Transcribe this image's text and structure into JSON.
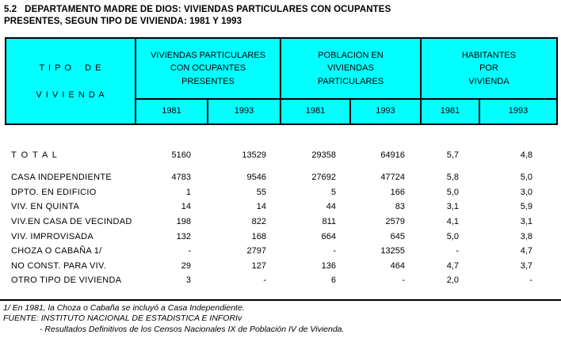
{
  "title": {
    "line1": "5.2   DEPARTAMENTO MADRE DE DIOS: VIVIENDAS PARTICULARES CON OCUPANTES",
    "line2": "PRESENTES, SEGUN TIPO DE VIVIENDA: 1981 Y 1993"
  },
  "colors": {
    "header_bg": "#00FFFF",
    "border": "#000000",
    "text": "#000000"
  },
  "table": {
    "row_header": {
      "line1": "T I P O    D E",
      "line2": "V I V I E N D A"
    },
    "groups": [
      {
        "title_lines": [
          "VIVIENDAS PARTICULARES",
          "CON OCUPANTES",
          "PRESENTES"
        ],
        "years": [
          "1981",
          "1993"
        ]
      },
      {
        "title_lines": [
          "POBLACION EN",
          "VIVIENDAS",
          "PARTICULARES"
        ],
        "years": [
          "1981",
          "1993"
        ]
      },
      {
        "title_lines": [
          "HABITANTES",
          "POR",
          "VIVIENDA"
        ],
        "years": [
          "1981",
          "1993"
        ]
      }
    ],
    "rows": [
      {
        "label": "T O T A L",
        "total": true,
        "values": [
          "5160",
          "13529",
          "29358",
          "64916",
          "5,7",
          "4,8"
        ]
      },
      {
        "label": "CASA INDEPENDIENTE",
        "total": false,
        "values": [
          "4783",
          "9546",
          "27692",
          "47724",
          "5,8",
          "5,0"
        ]
      },
      {
        "label": "DPTO. EN EDIFICIO",
        "total": false,
        "values": [
          "1",
          "55",
          "5",
          "166",
          "5,0",
          "3,0"
        ]
      },
      {
        "label": "VIV. EN QUINTA",
        "total": false,
        "values": [
          "14",
          "14",
          "44",
          "83",
          "3,1",
          "5,9"
        ]
      },
      {
        "label": "VIV.EN CASA DE VECINDAD",
        "total": false,
        "values": [
          "198",
          "822",
          "811",
          "2579",
          "4,1",
          "3,1"
        ]
      },
      {
        "label": "VIV. IMPROVISADA",
        "total": false,
        "values": [
          "132",
          "168",
          "664",
          "645",
          "5,0",
          "3,8"
        ]
      },
      {
        "label": "CHOZA O CABAÑA 1/",
        "total": false,
        "values": [
          "-",
          "2797",
          "-",
          "13255",
          "-",
          "4,7"
        ]
      },
      {
        "label": "NO CONST. PARA VIV.",
        "total": false,
        "values": [
          "29",
          "127",
          "136",
          "464",
          "4,7",
          "3,7"
        ]
      },
      {
        "label": "OTRO TIPO DE VIVIENDA",
        "total": false,
        "values": [
          "3",
          "-",
          "6",
          "-",
          "2,0",
          "-"
        ]
      }
    ]
  },
  "footnotes": {
    "note1": "1/ En 1981, la Choza o Cabaña se incluyó a Casa Independiente.",
    "source": "FUENTE: INSTITUTO NACIONAL DE ESTADISTICA E INFORIv",
    "source_detail": "- Resultados Definitivos de los Censos Nacionales IX de Población IV de Vivienda."
  }
}
